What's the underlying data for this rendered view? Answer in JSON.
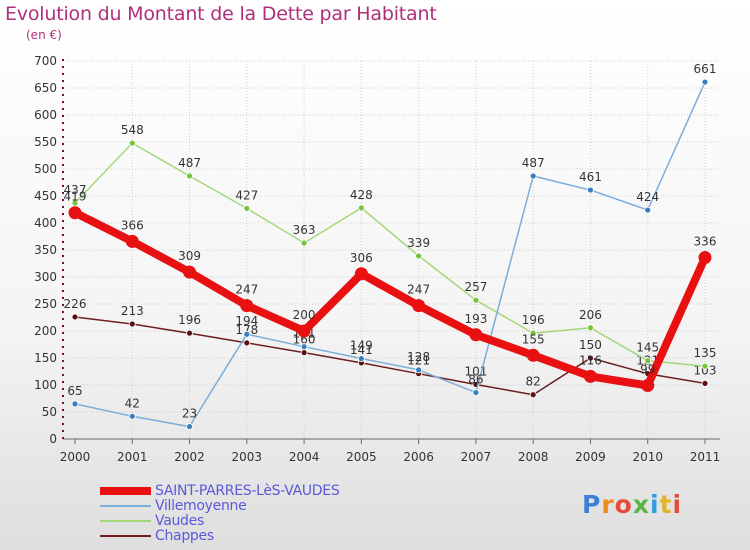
{
  "title": "Evolution du Montant de la Dette par Habitant",
  "subtitle": "(en €)",
  "logo": {
    "text": "Proxiti",
    "letter_colors": [
      "#3f7fd6",
      "#f08a1c",
      "#e64a3a",
      "#58b548",
      "#2f9fe0",
      "#e1b32d",
      "#e64a3a"
    ]
  },
  "chart_data": {
    "type": "line",
    "categories": [
      "2000",
      "2001",
      "2002",
      "2003",
      "2004",
      "2005",
      "2006",
      "2007",
      "2008",
      "2009",
      "2010",
      "2011"
    ],
    "ylim": [
      0,
      700
    ],
    "yticks": [
      0,
      50,
      100,
      150,
      200,
      250,
      300,
      350,
      400,
      450,
      500,
      550,
      600,
      650,
      700
    ],
    "grid": true,
    "legend_position": "bottom-left",
    "series": [
      {
        "name": "Chappes",
        "color": "#6e1e1e",
        "point_color": "#5a1010",
        "label_color": "#333333",
        "emphasis": false,
        "values": [
          226,
          213,
          196,
          178,
          160,
          141,
          121,
          101,
          82,
          150,
          121,
          103
        ]
      },
      {
        "name": "Vaudes",
        "color": "#a2d87a",
        "point_color": "#72c43a",
        "label_color": "#333333",
        "emphasis": false,
        "values": [
          437,
          548,
          487,
          427,
          363,
          428,
          339,
          257,
          196,
          206,
          145,
          135
        ]
      },
      {
        "name": "Villemoyenne",
        "color": "#7aaedc",
        "point_color": "#3a7cc0",
        "label_color": "#333333",
        "emphasis": false,
        "values": [
          65,
          42,
          23,
          194,
          171,
          149,
          128,
          86,
          487,
          461,
          424,
          661
        ]
      },
      {
        "name": "SAINT-PARRES-LèS-VAUDES",
        "color": "#e81010",
        "point_color": "#e81010",
        "label_color": "#333333",
        "emphasis": true,
        "values": [
          419,
          366,
          309,
          247,
          200,
          306,
          247,
          193,
          155,
          116,
          99,
          336
        ]
      }
    ],
    "legend_order": [
      "SAINT-PARRES-LèS-VAUDES",
      "Villemoyenne",
      "Vaudes",
      "Chappes"
    ]
  }
}
